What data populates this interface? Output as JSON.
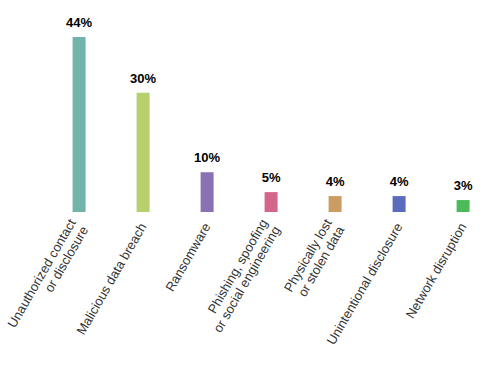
{
  "chart_data": {
    "type": "bar",
    "categories": [
      "Unauthorized contact or disclosure",
      "Malicious data breach",
      "Ransomware",
      "Phishing, spoofing or social engineering",
      "Physically lost or stolen data",
      "Unintentional disclosure",
      "Network disruption"
    ],
    "values": [
      44,
      30,
      10,
      5,
      4,
      4,
      3
    ],
    "value_labels": [
      "44%",
      "30%",
      "10%",
      "5%",
      "4%",
      "4%",
      "3%"
    ],
    "colors": [
      "#72b5a8",
      "#b8cf6e",
      "#8a71b5",
      "#d46689",
      "#cc9d62",
      "#5a6bbd",
      "#4cba5b"
    ],
    "data_labels": true,
    "tick_labels": "x",
    "grid": false
  }
}
